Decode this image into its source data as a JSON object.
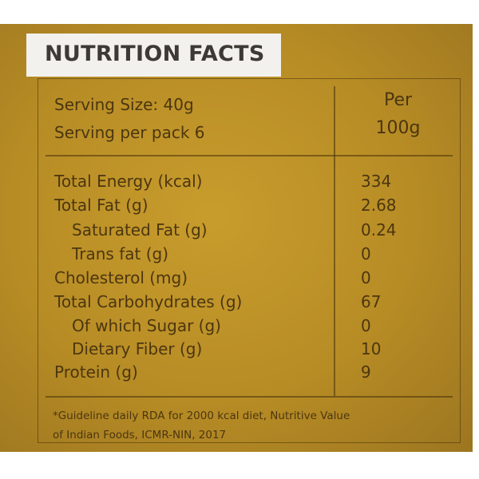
{
  "header": {
    "title": "NUTRITION FACTS"
  },
  "serving": {
    "size": "Serving Size: 40g",
    "per_pack": "Serving per pack 6"
  },
  "column": {
    "line1": "Per",
    "line2": "100g"
  },
  "rows": [
    {
      "label": "Total Energy (kcal)",
      "value": "334"
    },
    {
      "label": "Total Fat (g)",
      "value": "2.68"
    },
    {
      "label": "Saturated Fat (g)",
      "value": "0.24"
    },
    {
      "label": "Trans fat (g)",
      "value": "0"
    },
    {
      "label": "Cholesterol (mg)",
      "value": "0"
    },
    {
      "label": "Total Carbohydrates (g)",
      "value": "67"
    },
    {
      "label": "Of which Sugar (g)",
      "value": "0"
    },
    {
      "label": "Dietary Fiber (g)",
      "value": "10"
    },
    {
      "label": "Protein (g)",
      "value": "9"
    }
  ],
  "footnote": {
    "line1": "*Guideline daily RDA for 2000 kcal diet, Nutritive Value",
    "line2": "of Indian Foods, ICMR-NIN, 2017"
  }
}
